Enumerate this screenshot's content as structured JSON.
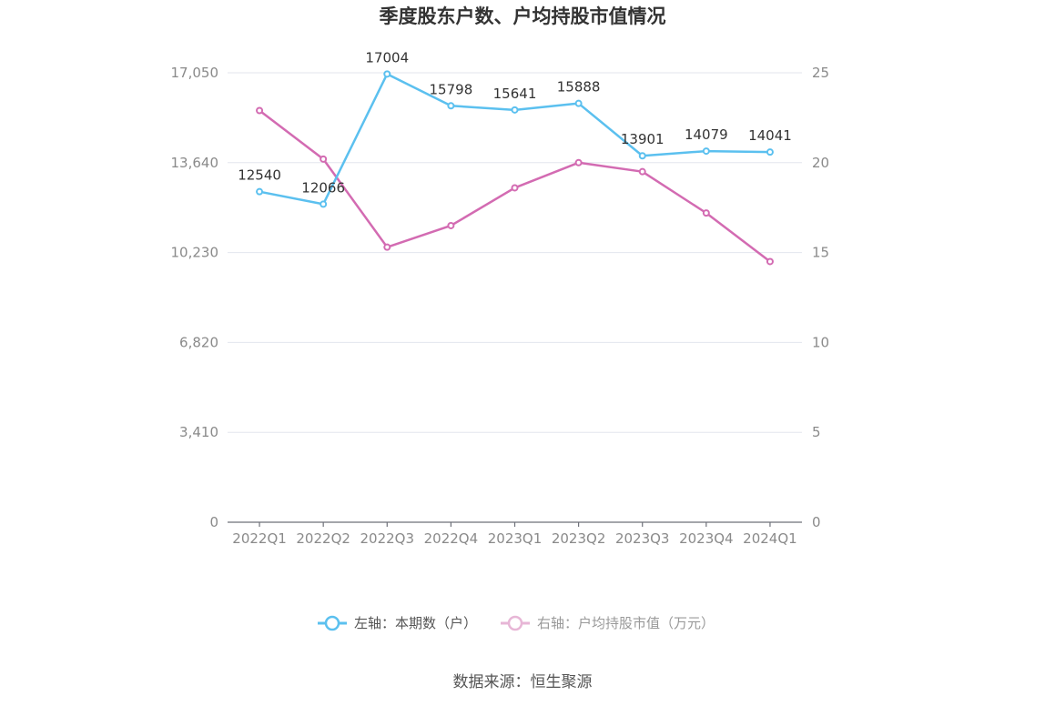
{
  "chart_data": {
    "type": "line",
    "title": "季度股东户数、户均持股市值情况",
    "categories": [
      "2022Q1",
      "2022Q2",
      "2022Q3",
      "2022Q4",
      "2023Q1",
      "2023Q2",
      "2023Q3",
      "2023Q4",
      "2024Q1"
    ],
    "left_axis": {
      "min": 0,
      "max": 17050,
      "ticks": [
        "0",
        "3,410",
        "6,820",
        "10,230",
        "13,640",
        "17,050"
      ],
      "tick_values": [
        0,
        3410,
        6820,
        10230,
        13640,
        17050
      ]
    },
    "right_axis": {
      "min": 0,
      "max": 25,
      "ticks": [
        "0",
        "5",
        "10",
        "15",
        "20",
        "25"
      ],
      "tick_values": [
        0,
        5,
        10,
        15,
        20,
        25
      ]
    },
    "series": [
      {
        "name": "左轴：本期数（户）",
        "axis": "left",
        "color": "#5bc0ef",
        "values": [
          12540,
          12066,
          17004,
          15798,
          15641,
          15888,
          13901,
          14079,
          14041
        ],
        "labels": [
          "12540",
          "12066",
          "17004",
          "15798",
          "15641",
          "15888",
          "13901",
          "14079",
          "14041"
        ]
      },
      {
        "name": "右轴：户均持股市值（万元）",
        "axis": "right",
        "color": "#d36bb2",
        "values": [
          22.9,
          20.2,
          15.3,
          16.5,
          18.6,
          20.0,
          19.5,
          17.2,
          14.5
        ]
      }
    ],
    "legend_position": "bottom",
    "grid": true
  },
  "footer": {
    "source": "数据来源：恒生聚源"
  }
}
